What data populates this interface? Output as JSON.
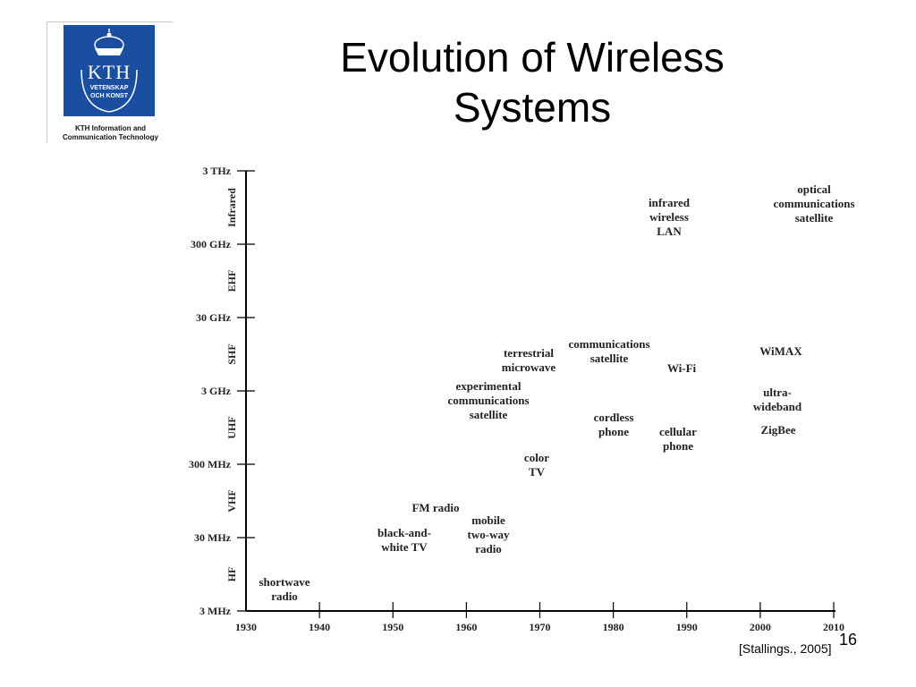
{
  "logo": {
    "mark": "KTH",
    "line1": "VETENSKAP",
    "line2": "OCH KONST",
    "caption_line1": "KTH Information and",
    "caption_line2": "Communication Technology",
    "color": "#1a4ea1"
  },
  "slide": {
    "title_line1": "Evolution of Wireless",
    "title_line2": "Systems",
    "page_number": "16",
    "source": "[Stallings., 2005]"
  },
  "chart_data": {
    "type": "scatter",
    "title": "",
    "xlabel": "",
    "ylabel": "",
    "x_ticks": [
      1930,
      1940,
      1950,
      1960,
      1970,
      1980,
      1990,
      2000,
      2010
    ],
    "xlim": [
      1930,
      2010
    ],
    "y_ticks": [
      "3 MHz",
      "30 MHz",
      "300 MHz",
      "3 GHz",
      "30 GHz",
      "300 GHz",
      "3 THz"
    ],
    "y_scale": "log",
    "bands": [
      "HF",
      "VHF",
      "UHF",
      "SHF",
      "EHF",
      "Infrared"
    ],
    "points": [
      {
        "lines": [
          "shortwave",
          "radio"
        ],
        "x": 1936,
        "y": "~5 MHz"
      },
      {
        "lines": [
          "FM radio"
        ],
        "x": 1956,
        "y": "~80 MHz"
      },
      {
        "lines": [
          "black-and-",
          "white TV"
        ],
        "x": 1952,
        "y": "~35 MHz"
      },
      {
        "lines": [
          "mobile",
          "two-way",
          "radio"
        ],
        "x": 1963,
        "y": "~30 MHz"
      },
      {
        "lines": [
          "color",
          "TV"
        ],
        "x": 1970,
        "y": "~400 MHz"
      },
      {
        "lines": [
          "experimental",
          "communications",
          "satellite"
        ],
        "x": 1963,
        "y": "~2 GHz"
      },
      {
        "lines": [
          "terrestrial",
          "microwave"
        ],
        "x": 1967,
        "y": "~7 GHz"
      },
      {
        "lines": [
          "communications",
          "satellite"
        ],
        "x": 1980,
        "y": "~10 GHz"
      },
      {
        "lines": [
          "cordless",
          "phone"
        ],
        "x": 1980,
        "y": "~1 GHz"
      },
      {
        "lines": [
          "cellular",
          "phone"
        ],
        "x": 1989,
        "y": "~800 MHz"
      },
      {
        "lines": [
          "Wi-Fi"
        ],
        "x": 1989,
        "y": "~5 GHz"
      },
      {
        "lines": [
          "infrared",
          "wireless",
          "LAN"
        ],
        "x": 1989,
        "y": "~500 GHz"
      },
      {
        "lines": [
          "optical",
          "communications",
          "satellite"
        ],
        "x": 2007,
        "y": "~1.5 THz"
      },
      {
        "lines": [
          "WiMAX"
        ],
        "x": 2003,
        "y": "~10 GHz"
      },
      {
        "lines": [
          "ultra-",
          "wideband"
        ],
        "x": 2002,
        "y": "~3 GHz"
      },
      {
        "lines": [
          "ZigBee"
        ],
        "x": 2003,
        "y": "~900 MHz"
      }
    ]
  }
}
